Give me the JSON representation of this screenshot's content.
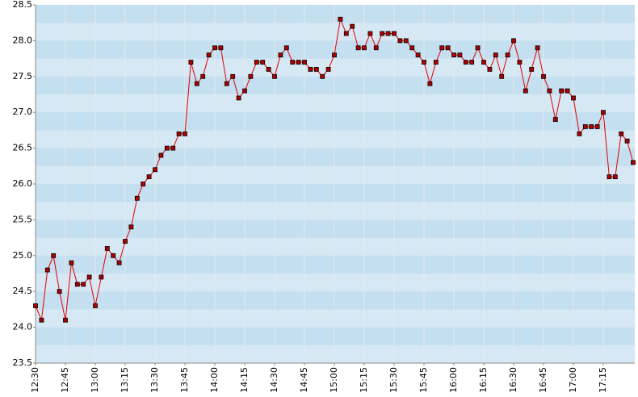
{
  "chart_data": {
    "type": "line",
    "categories": [
      "12:30",
      null,
      null,
      null,
      null,
      "12:45",
      null,
      null,
      null,
      null,
      "13:00",
      null,
      null,
      null,
      null,
      "13:15",
      null,
      null,
      null,
      null,
      "13:30",
      null,
      null,
      null,
      null,
      "13:45",
      null,
      null,
      null,
      null,
      "14:00",
      null,
      null,
      null,
      null,
      "14:15",
      null,
      null,
      null,
      null,
      "14:30",
      null,
      null,
      null,
      null,
      "14:45",
      null,
      null,
      null,
      null,
      "15:00",
      null,
      null,
      null,
      null,
      "15:15",
      null,
      null,
      null,
      null,
      "15:30",
      null,
      null,
      null,
      null,
      "15:45",
      null,
      null,
      null,
      null,
      "16:00",
      null,
      null,
      null,
      null,
      "16:15",
      null,
      null,
      null,
      null,
      "16:30",
      null,
      null,
      null,
      null,
      "16:45",
      null,
      null,
      null,
      null,
      "17:00",
      null,
      null,
      null,
      null,
      "17:15",
      null,
      null,
      null,
      null,
      null
    ],
    "series": [
      {
        "color": "#e00000",
        "values": [
          24.3,
          24.1,
          24.8,
          25.0,
          24.5,
          24.1,
          24.9,
          24.6,
          24.6,
          24.7,
          24.3,
          24.7,
          25.1,
          25.0,
          24.9,
          25.2,
          25.4,
          25.8,
          26.0,
          26.1,
          26.2,
          26.4,
          26.5,
          26.5,
          26.7,
          26.7,
          27.7,
          27.4,
          27.5,
          27.8,
          27.9,
          27.9,
          27.4,
          27.5,
          27.2,
          27.3,
          27.5,
          27.7,
          27.7,
          27.6,
          27.5,
          27.8,
          27.9,
          27.7,
          27.7,
          27.7,
          27.6,
          27.6,
          27.5,
          27.6,
          27.8,
          28.3,
          28.1,
          28.2,
          27.9,
          27.9,
          28.1,
          27.9,
          28.1,
          28.1,
          28.1,
          28.0,
          28.0,
          27.9,
          27.8,
          27.7,
          27.4,
          27.7,
          27.9,
          27.9,
          27.8,
          27.8,
          27.7,
          27.7,
          27.9,
          27.7,
          27.6,
          27.8,
          27.5,
          27.8,
          28.0,
          27.7,
          27.3,
          27.6,
          27.9,
          27.5,
          27.3,
          26.9,
          27.3,
          27.3,
          27.2,
          26.7,
          26.8,
          26.8,
          26.8,
          27.0,
          26.1,
          26.1,
          26.7,
          26.6,
          26.3
        ]
      }
    ],
    "ylim": [
      23.5,
      28.5
    ],
    "yticks": [
      23.5,
      {
        "value": 24,
        "label": "24.0"
      },
      24.5,
      {
        "value": 25,
        "label": "25.0"
      },
      25.5,
      {
        "value": 26,
        "label": "26.0"
      },
      26.5,
      {
        "value": 27,
        "label": "27.0"
      },
      27.5,
      {
        "value": 28,
        "label": "28.0"
      },
      28.5
    ],
    "grid": true
  }
}
